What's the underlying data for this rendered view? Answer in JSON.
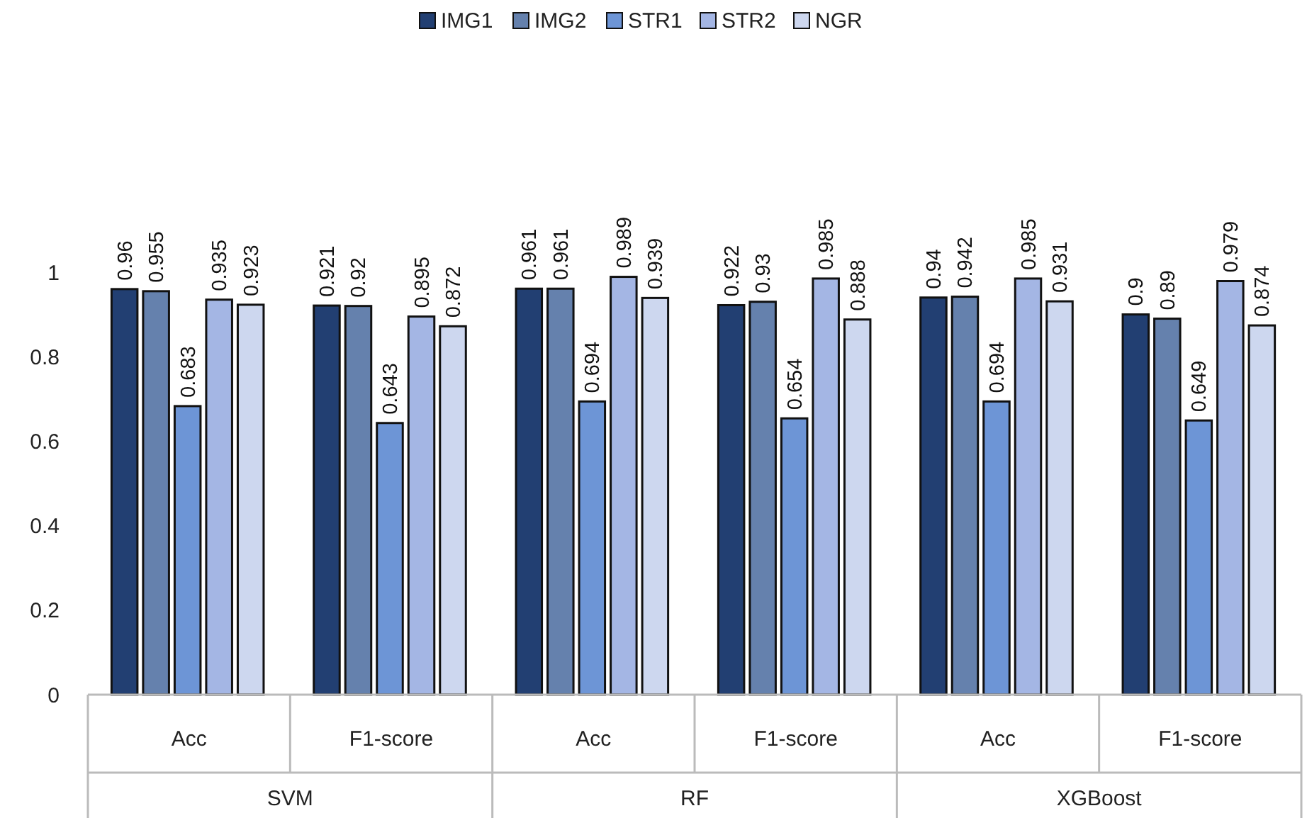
{
  "chart_data": {
    "type": "bar",
    "categories": [
      "Acc",
      "F1-score",
      "Acc",
      "F1-score",
      "Acc",
      "F1-score"
    ],
    "annotations": [
      "SVM",
      "RF",
      "XGBoost"
    ],
    "series": [
      {
        "name": "IMG1",
        "color": "#223f72",
        "values": [
          0.96,
          0.921,
          0.961,
          0.922,
          0.94,
          0.9
        ]
      },
      {
        "name": "IMG2",
        "color": "#6581ad",
        "values": [
          0.955,
          0.92,
          0.961,
          0.93,
          0.942,
          0.89
        ]
      },
      {
        "name": "STR1",
        "color": "#6d95d6",
        "values": [
          0.683,
          0.643,
          0.694,
          0.654,
          0.694,
          0.649
        ]
      },
      {
        "name": "STR2",
        "color": "#a4b6e4",
        "values": [
          0.935,
          0.895,
          0.989,
          0.985,
          0.985,
          0.979
        ]
      },
      {
        "name": "NGR",
        "color": "#cdd7ef",
        "values": [
          0.923,
          0.872,
          0.939,
          0.888,
          0.931,
          0.874
        ]
      }
    ],
    "ylim": [
      0,
      1
    ],
    "yticks": [
      0,
      0.2,
      0.4,
      0.6,
      0.8,
      1
    ],
    "data_labels": true,
    "legend": "top",
    "grid": false
  }
}
